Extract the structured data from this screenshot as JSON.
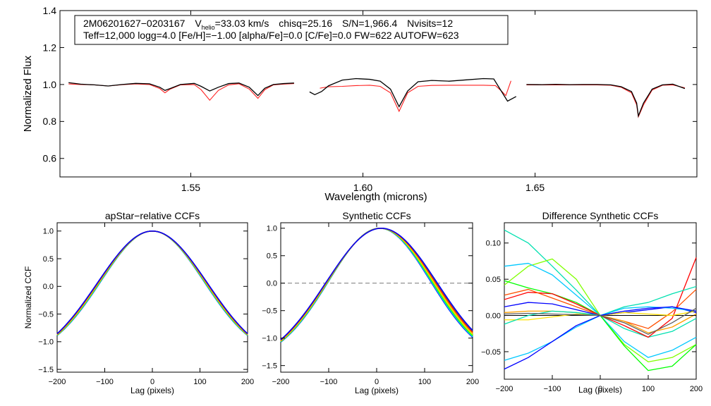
{
  "header": {
    "star_id": "2M06201627−0203167",
    "vhelio_prefix": "V",
    "vhelio_sub": "helio",
    "vhelio_value": "=33.03 km/s",
    "chisq": "chisq=25.16",
    "snr": "S/N=1,966.4",
    "nvisits": "Nvisits=12",
    "params": "Teff=12,000 logg=4.0 [Fe/H]=−1.00 [alpha/Fe]=0.0 [C/Fe]=0.0 FW=622 AUTOFW=623"
  },
  "colors": {
    "observed": "#000000",
    "model": "#ff2020",
    "ccf_palette": [
      "#0000ff",
      "#00c8ff",
      "#00e0b0",
      "#00ff00",
      "#80ff00",
      "#d0e000",
      "#ffe000",
      "#ffa000",
      "#ff5000",
      "#ff0000",
      "#606060"
    ]
  },
  "chart_data": [
    {
      "id": "spectrum",
      "type": "line",
      "title": "",
      "xlabel": "Wavelength (microns)",
      "ylabel": "Normalized Flux",
      "xlim": [
        1.512,
        1.697
      ],
      "ylim": [
        0.5,
        1.4
      ],
      "xticks": [
        {
          "v": 1.55,
          "label": "1.55"
        },
        {
          "v": 1.6,
          "label": "1.60"
        },
        {
          "v": 1.65,
          "label": "1.65"
        }
      ],
      "yticks": [
        {
          "v": 0.6,
          "label": "0.6"
        },
        {
          "v": 0.8,
          "label": "0.8"
        },
        {
          "v": 1.0,
          "label": "1.0"
        },
        {
          "v": 1.2,
          "label": "1.2"
        },
        {
          "v": 1.4,
          "label": "1.4"
        }
      ],
      "chips": [
        {
          "name": "blue",
          "observed": [
            [
              1.5145,
              1.01
            ],
            [
              1.518,
              1.002
            ],
            [
              1.522,
              0.998
            ],
            [
              1.526,
              0.992
            ],
            [
              1.53,
              1.0
            ],
            [
              1.534,
              1.006
            ],
            [
              1.538,
              1.004
            ],
            [
              1.541,
              0.985
            ],
            [
              1.5425,
              0.968
            ],
            [
              1.544,
              0.978
            ],
            [
              1.547,
              1.0
            ],
            [
              1.551,
              1.006
            ],
            [
              1.553,
              0.99
            ],
            [
              1.5555,
              0.965
            ],
            [
              1.558,
              0.985
            ],
            [
              1.561,
              1.005
            ],
            [
              1.564,
              1.008
            ],
            [
              1.567,
              0.985
            ],
            [
              1.5695,
              0.94
            ],
            [
              1.5715,
              0.98
            ],
            [
              1.574,
              1.0
            ],
            [
              1.577,
              1.005
            ],
            [
              1.58,
              1.008
            ]
          ],
          "model": [
            [
              1.5145,
              1.003
            ],
            [
              1.518,
              1.0
            ],
            [
              1.522,
              0.998
            ],
            [
              1.526,
              0.992
            ],
            [
              1.53,
              0.999
            ],
            [
              1.534,
              1.003
            ],
            [
              1.538,
              1.0
            ],
            [
              1.541,
              0.978
            ],
            [
              1.5425,
              0.955
            ],
            [
              1.544,
              0.975
            ],
            [
              1.547,
              0.998
            ],
            [
              1.551,
              1.0
            ],
            [
              1.553,
              0.972
            ],
            [
              1.5555,
              0.915
            ],
            [
              1.558,
              0.968
            ],
            [
              1.561,
              0.998
            ],
            [
              1.564,
              1.004
            ],
            [
              1.567,
              0.975
            ],
            [
              1.5695,
              0.925
            ],
            [
              1.5715,
              0.972
            ],
            [
              1.574,
              0.998
            ],
            [
              1.577,
              1.002
            ],
            [
              1.58,
              1.005
            ]
          ]
        },
        {
          "name": "green",
          "observed": [
            [
              1.5845,
              0.96
            ],
            [
              1.586,
              0.945
            ],
            [
              1.588,
              0.962
            ],
            [
              1.59,
              0.993
            ],
            [
              1.594,
              1.024
            ],
            [
              1.598,
              1.032
            ],
            [
              1.602,
              1.028
            ],
            [
              1.605,
              1.018
            ],
            [
              1.608,
              0.975
            ],
            [
              1.6105,
              0.88
            ],
            [
              1.613,
              0.965
            ],
            [
              1.616,
              1.015
            ],
            [
              1.62,
              1.022
            ],
            [
              1.625,
              1.018
            ],
            [
              1.63,
              1.025
            ],
            [
              1.635,
              1.032
            ],
            [
              1.638,
              1.03
            ],
            [
              1.64,
              0.97
            ],
            [
              1.642,
              0.91
            ],
            [
              1.6445,
              0.935
            ]
          ],
          "model": [
            [
              1.5875,
              0.98
            ],
            [
              1.59,
              0.988
            ],
            [
              1.594,
              0.99
            ],
            [
              1.598,
              0.994
            ],
            [
              1.602,
              0.996
            ],
            [
              1.605,
              0.99
            ],
            [
              1.608,
              0.955
            ],
            [
              1.6105,
              0.855
            ],
            [
              1.613,
              0.955
            ],
            [
              1.616,
              0.99
            ],
            [
              1.62,
              0.995
            ],
            [
              1.625,
              0.996
            ],
            [
              1.63,
              0.996
            ],
            [
              1.635,
              0.996
            ],
            [
              1.6385,
              0.994
            ],
            [
              1.6405,
              0.96
            ],
            [
              1.6415,
              0.94
            ],
            [
              1.643,
              1.02
            ]
          ]
        },
        {
          "name": "red",
          "observed": [
            [
              1.6475,
              1.0
            ],
            [
              1.652,
              0.999
            ],
            [
              1.656,
              1.001
            ],
            [
              1.66,
              0.999
            ],
            [
              1.664,
              1.0
            ],
            [
              1.668,
              1.0
            ],
            [
              1.672,
              0.998
            ],
            [
              1.675,
              0.988
            ],
            [
              1.678,
              0.962
            ],
            [
              1.6795,
              0.9
            ],
            [
              1.68,
              0.83
            ],
            [
              1.6815,
              0.9
            ],
            [
              1.684,
              0.975
            ],
            [
              1.687,
              0.998
            ],
            [
              1.69,
              1.002
            ],
            [
              1.6935,
              0.978
            ]
          ],
          "model": [
            [
              1.6475,
              0.998
            ],
            [
              1.652,
              0.998
            ],
            [
              1.656,
              0.998
            ],
            [
              1.66,
              0.998
            ],
            [
              1.664,
              0.998
            ],
            [
              1.668,
              0.998
            ],
            [
              1.672,
              0.996
            ],
            [
              1.675,
              0.985
            ],
            [
              1.678,
              0.955
            ],
            [
              1.6795,
              0.89
            ],
            [
              1.68,
              0.825
            ],
            [
              1.6815,
              0.89
            ],
            [
              1.684,
              0.97
            ],
            [
              1.687,
              0.996
            ],
            [
              1.69,
              0.998
            ],
            [
              1.6935,
              0.982
            ]
          ]
        }
      ]
    },
    {
      "id": "apstar-ccf",
      "type": "line",
      "title": "apStar−relative CCFs",
      "xlabel": "Lag (pixels)",
      "ylabel": "Normalized CCF",
      "xlim": [
        -200,
        200
      ],
      "ylim": [
        -1.55,
        1.15
      ],
      "xticks": [
        {
          "v": -200,
          "label": "−200"
        },
        {
          "v": -100,
          "label": "−100"
        },
        {
          "v": 0,
          "label": "0"
        },
        {
          "v": 100,
          "label": "100"
        },
        {
          "v": 200,
          "label": "200"
        }
      ],
      "yticks": [
        {
          "v": -1.5,
          "label": "−1.5"
        },
        {
          "v": -1.0,
          "label": "−1.0"
        },
        {
          "v": -0.5,
          "label": "−0.5"
        },
        {
          "v": 0.0,
          "label": "0.0"
        },
        {
          "v": 0.5,
          "label": "0.5"
        },
        {
          "v": 1.0,
          "label": "1.0"
        }
      ],
      "zero_line": false,
      "curve_model": {
        "amplitude": 1.0,
        "sigma": 110,
        "offset_range": [
          -0.04,
          0.05
        ],
        "tail_spread": [
          -1.4,
          -1.28
        ]
      },
      "series_count": 12
    },
    {
      "id": "synthetic-ccf",
      "type": "line",
      "title": "Synthetic CCFs",
      "xlabel": "Lag (pixels)",
      "ylabel": "",
      "xlim": [
        -200,
        200
      ],
      "ylim": [
        -1.62,
        1.1
      ],
      "xticks": [
        {
          "v": -200,
          "label": "−200"
        },
        {
          "v": -100,
          "label": "−100"
        },
        {
          "v": 0,
          "label": "0"
        },
        {
          "v": 100,
          "label": "100"
        },
        {
          "v": 200,
          "label": "200"
        }
      ],
      "yticks": [
        {
          "v": -1.5,
          "label": "−1.5"
        },
        {
          "v": -1.0,
          "label": "−1.0"
        },
        {
          "v": -0.5,
          "label": "−0.5"
        },
        {
          "v": 0.0,
          "label": "0.0"
        },
        {
          "v": 0.5,
          "label": "0.5"
        },
        {
          "v": 1.0,
          "label": "1.0"
        }
      ],
      "zero_line": true,
      "series_count": 12
    },
    {
      "id": "difference-ccf",
      "type": "line",
      "title": "Difference Synthetic CCFs",
      "xlabel": "Lag (pixels)",
      "ylabel": "",
      "xlim": [
        -200,
        200
      ],
      "ylim": [
        -0.088,
        0.128
      ],
      "xticks": [
        {
          "v": -200,
          "label": "−200"
        },
        {
          "v": -100,
          "label": "−100"
        },
        {
          "v": 0,
          "label": "0"
        },
        {
          "v": 100,
          "label": "100"
        },
        {
          "v": 200,
          "label": "200"
        }
      ],
      "yticks": [
        {
          "v": -0.05,
          "label": "−0.05"
        },
        {
          "v": 0.0,
          "label": "0.00"
        },
        {
          "v": 0.05,
          "label": "0.05"
        },
        {
          "v": 0.1,
          "label": "0.10"
        }
      ],
      "zero_line": true,
      "series": [
        {
          "name": "s1",
          "color": "#00e0b0",
          "x": [
            -200,
            -150,
            -100,
            -50,
            0,
            50,
            100,
            150,
            200
          ],
          "y": [
            0.118,
            0.1,
            0.068,
            0.035,
            0.0,
            -0.018,
            -0.03,
            -0.022,
            -0.004
          ]
        },
        {
          "name": "s2",
          "color": "#80ff00",
          "x": [
            -200,
            -150,
            -100,
            -50,
            0,
            50,
            100,
            150,
            200
          ],
          "y": [
            0.042,
            0.068,
            0.078,
            0.05,
            0.0,
            -0.04,
            -0.064,
            -0.058,
            -0.04
          ]
        },
        {
          "name": "s3",
          "color": "#00c8ff",
          "x": [
            -200,
            -150,
            -100,
            -50,
            0,
            50,
            100,
            150,
            200
          ],
          "y": [
            0.068,
            0.072,
            0.056,
            0.028,
            0.0,
            -0.036,
            -0.058,
            -0.048,
            -0.03
          ]
        },
        {
          "name": "s4",
          "color": "#00ff00",
          "x": [
            -200,
            -150,
            -100,
            -50,
            0,
            50,
            100,
            150,
            200
          ],
          "y": [
            0.048,
            0.038,
            0.03,
            0.018,
            0.0,
            -0.042,
            -0.076,
            -0.07,
            -0.04
          ]
        },
        {
          "name": "s5",
          "color": "#ff0000",
          "x": [
            -200,
            -150,
            -100,
            -50,
            0,
            50,
            100,
            150,
            200
          ],
          "y": [
            0.022,
            0.032,
            0.03,
            0.016,
            0.0,
            -0.014,
            -0.03,
            -0.004,
            0.08
          ]
        },
        {
          "name": "s6",
          "color": "#ff5000",
          "x": [
            -200,
            -150,
            -100,
            -50,
            0,
            50,
            100,
            150,
            200
          ],
          "y": [
            0.028,
            0.036,
            0.024,
            0.012,
            0.0,
            -0.008,
            -0.018,
            0.005,
            0.036
          ]
        },
        {
          "name": "s7",
          "color": "#0000ff",
          "x": [
            -200,
            -150,
            -100,
            -50,
            0,
            50,
            100,
            150,
            200
          ],
          "y": [
            0.012,
            0.018,
            0.016,
            0.008,
            0.0,
            0.004,
            0.008,
            0.012,
            0.004
          ]
        },
        {
          "name": "s8",
          "color": "#ffa000",
          "x": [
            -200,
            -150,
            -100,
            -50,
            0,
            50,
            100,
            150,
            200
          ],
          "y": [
            0.004,
            0.006,
            0.006,
            0.004,
            0.0,
            -0.008,
            -0.024,
            -0.016,
            0.002
          ]
        },
        {
          "name": "s9",
          "color": "#ffe000",
          "x": [
            -200,
            -150,
            -100,
            -50,
            0,
            50,
            100,
            150,
            200
          ],
          "y": [
            -0.006,
            -0.006,
            -0.002,
            0.002,
            0.0,
            0.004,
            0.002,
            0.0,
            0.006
          ]
        },
        {
          "name": "s10",
          "color": "#00e0b0",
          "x": [
            -200,
            -150,
            -100,
            -50,
            0,
            50,
            100,
            150,
            200
          ],
          "y": [
            -0.012,
            0.0,
            0.006,
            0.004,
            0.0,
            0.012,
            0.018,
            0.03,
            0.04
          ]
        },
        {
          "name": "s11",
          "color": "#00c8ff",
          "x": [
            -200,
            -150,
            -100,
            -50,
            0,
            50,
            100,
            150,
            200
          ],
          "y": [
            -0.062,
            -0.052,
            -0.036,
            -0.016,
            0.0,
            0.01,
            0.012,
            0.01,
            0.006
          ]
        },
        {
          "name": "s12",
          "color": "#0000ff",
          "x": [
            -200,
            -150,
            -100,
            -50,
            0,
            50,
            100,
            150,
            200
          ],
          "y": [
            -0.074,
            -0.058,
            -0.036,
            -0.014,
            0.0,
            0.006,
            0.01,
            0.012,
            0.006
          ]
        },
        {
          "name": "s13",
          "color": "#606060",
          "x": [
            -200,
            -150,
            -100,
            -50,
            0,
            50,
            100,
            150,
            200
          ],
          "y": [
            0.002,
            0.003,
            0.002,
            0.001,
            0.0,
            -0.01,
            -0.026,
            -0.01,
            0.01
          ]
        }
      ]
    }
  ]
}
